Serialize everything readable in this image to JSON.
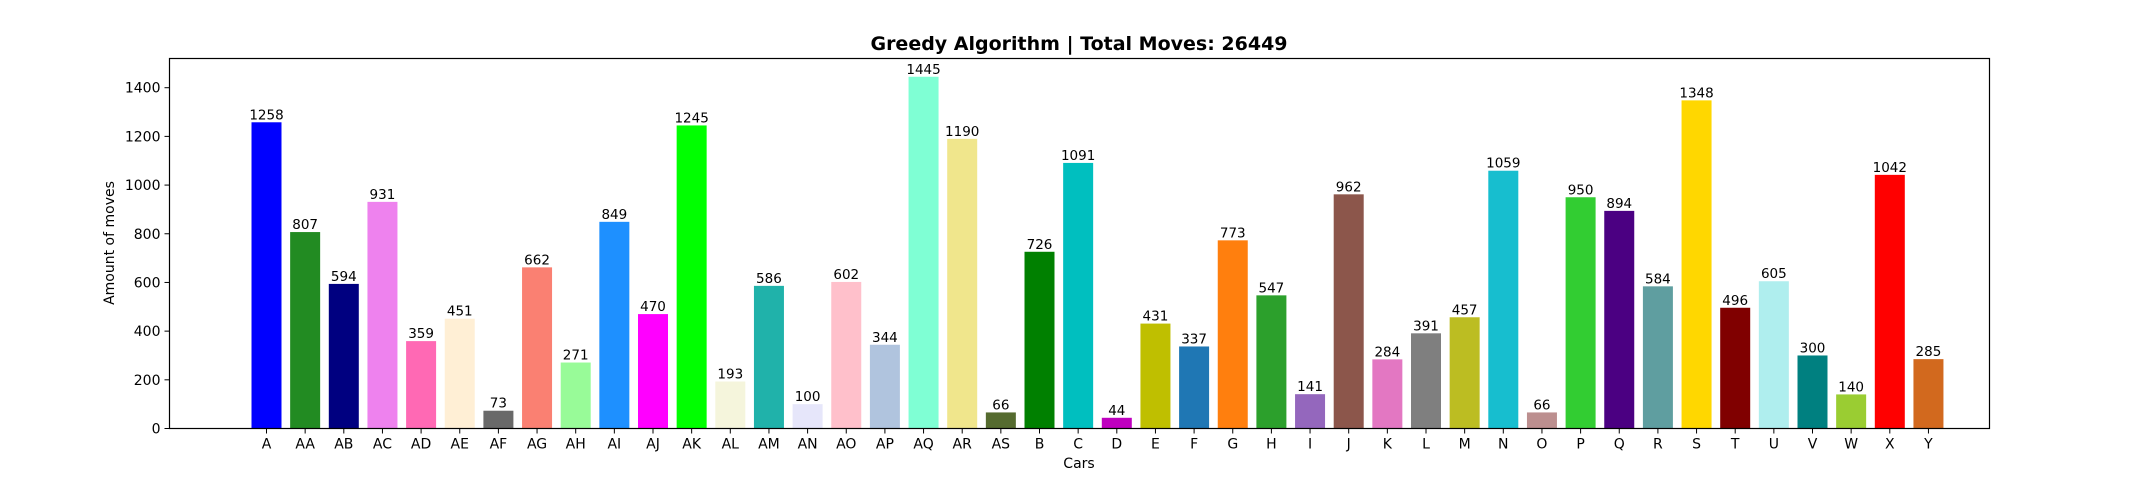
{
  "chart_data": {
    "type": "bar",
    "title": "Greedy Algorithm | Total Moves: 26449",
    "xlabel": "Cars",
    "ylabel": "Amount of moves",
    "ylim": [
      0,
      1520
    ],
    "yticks": [
      0,
      200,
      400,
      600,
      800,
      1000,
      1200,
      1400
    ],
    "grid": false,
    "categories": [
      "A",
      "AA",
      "AB",
      "AC",
      "AD",
      "AE",
      "AF",
      "AG",
      "AH",
      "AI",
      "AJ",
      "AK",
      "AL",
      "AM",
      "AN",
      "AO",
      "AP",
      "AQ",
      "AR",
      "AS",
      "B",
      "C",
      "D",
      "E",
      "F",
      "G",
      "H",
      "I",
      "J",
      "K",
      "L",
      "M",
      "N",
      "O",
      "P",
      "Q",
      "R",
      "S",
      "T",
      "U",
      "V",
      "W",
      "X",
      "Y"
    ],
    "values": [
      1258,
      807,
      594,
      931,
      359,
      451,
      73,
      662,
      271,
      849,
      470,
      1245,
      193,
      586,
      100,
      602,
      344,
      1445,
      1190,
      66,
      726,
      1091,
      44,
      431,
      337,
      773,
      547,
      141,
      962,
      284,
      391,
      457,
      1059,
      66,
      950,
      894,
      584,
      1348,
      496,
      605,
      300,
      140,
      1042,
      285
    ],
    "colors": [
      "#0000ff",
      "#228b22",
      "#000080",
      "#ee82ee",
      "#ff69b4",
      "#ffefd5",
      "#696969",
      "#fa8072",
      "#98fb98",
      "#1e90ff",
      "#ff00ff",
      "#00ff00",
      "#f5f5dc",
      "#20b2aa",
      "#e6e6fa",
      "#ffc0cb",
      "#b0c4de",
      "#7fffd4",
      "#f0e68c",
      "#556b2f",
      "#008000",
      "#00bfbf",
      "#bf00bf",
      "#bfbf00",
      "#1f77b4",
      "#ff7f0e",
      "#2ca02c",
      "#9467bd",
      "#8c564b",
      "#e377c2",
      "#7f7f7f",
      "#bcbd22",
      "#17becf",
      "#bc8f8f",
      "#32cd32",
      "#4b0082",
      "#5f9ea0",
      "#ffd700",
      "#800000",
      "#afeeee",
      "#008080",
      "#9acd32",
      "#ff0000",
      "#d2691e"
    ]
  }
}
